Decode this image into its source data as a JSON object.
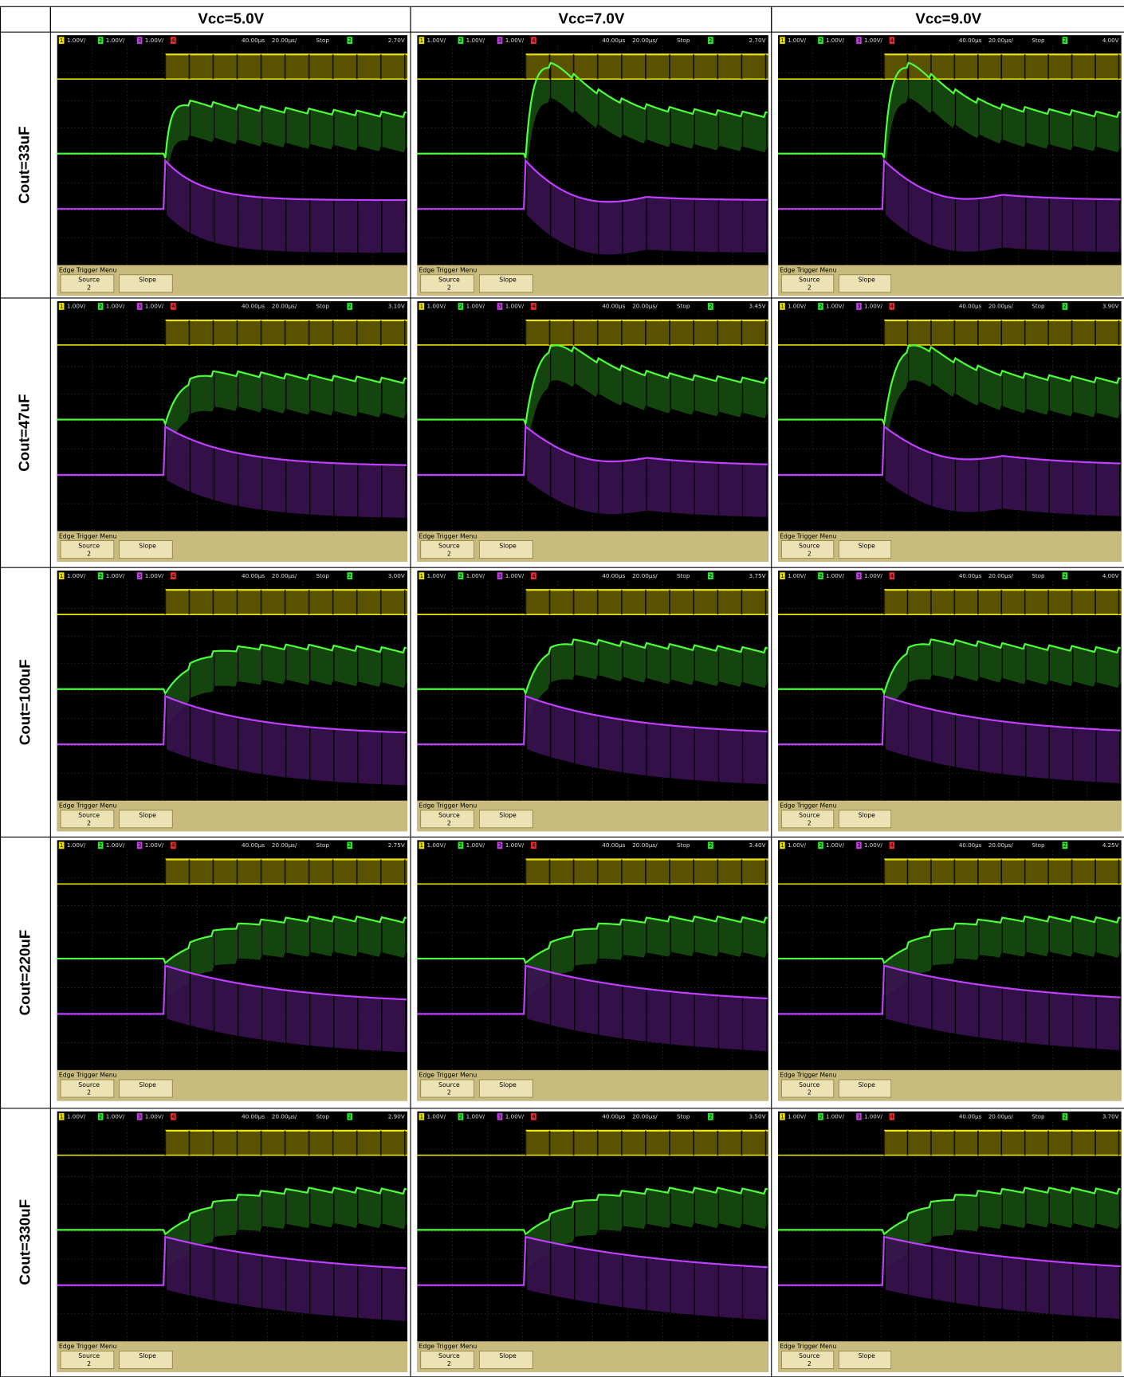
{
  "columns": [
    "Vcc=5.0V",
    "Vcc=7.0V",
    "Vcc=9.0V"
  ],
  "rows": [
    {
      "label": "Cout=33uF",
      "trigger_levels": [
        "2.70V",
        "2.70V",
        "4.00V"
      ]
    },
    {
      "label": "Cout=47uF",
      "trigger_levels": [
        "3.10V",
        "3.45V",
        "3.90V"
      ]
    },
    {
      "label": "Cout=100uF",
      "trigger_levels": [
        "3.00V",
        "3.75V",
        "4.00V"
      ]
    },
    {
      "label": "Cout=220uF",
      "trigger_levels": [
        "2.75V",
        "3.40V",
        "4.25V"
      ]
    },
    {
      "label": "Cout=330uF",
      "trigger_levels": [
        "2.90V",
        "3.50V",
        "3.70V"
      ]
    }
  ],
  "scope": {
    "channels": [
      "1",
      "2",
      "3",
      "4"
    ],
    "channel_scale": "1.00V/",
    "delay": "40.00µs",
    "timebase": "20.00µs/",
    "mode": "Stop",
    "trigger_channel": "2",
    "menu_title": "Edge Trigger Menu",
    "source_label": "Source",
    "source_value": "2",
    "slope_label": "Slope"
  }
}
